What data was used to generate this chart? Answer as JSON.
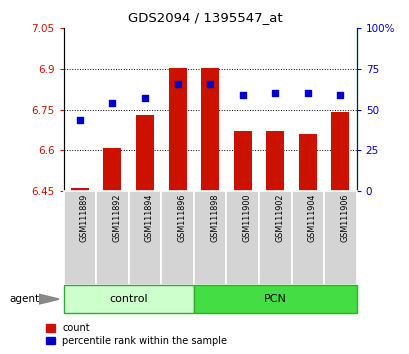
{
  "title": "GDS2094 / 1395547_at",
  "categories": [
    "GSM111889",
    "GSM111892",
    "GSM111894",
    "GSM111896",
    "GSM111898",
    "GSM111900",
    "GSM111902",
    "GSM111904",
    "GSM111906"
  ],
  "bar_values": [
    6.46,
    6.61,
    6.73,
    6.905,
    6.905,
    6.67,
    6.67,
    6.66,
    6.74
  ],
  "dot_values": [
    44,
    54,
    57,
    66,
    66,
    59,
    60,
    60,
    59
  ],
  "bar_color": "#cc1100",
  "dot_color": "#0000cc",
  "bar_bottom": 6.45,
  "ylim_left": [
    6.45,
    7.05
  ],
  "ylim_right": [
    0,
    100
  ],
  "yticks_left": [
    6.45,
    6.6,
    6.75,
    6.9,
    7.05
  ],
  "yticks_right": [
    0,
    25,
    50,
    75,
    100
  ],
  "ytick_labels_left": [
    "6.45",
    "6.6",
    "6.75",
    "6.9",
    "7.05"
  ],
  "ytick_labels_right": [
    "0",
    "25",
    "50",
    "75",
    "100%"
  ],
  "hlines": [
    6.6,
    6.75,
    6.9
  ],
  "group_labels": [
    "control",
    "PCN"
  ],
  "group_ranges": [
    [
      0,
      3
    ],
    [
      4,
      8
    ]
  ],
  "group_color_light": "#ccffcc",
  "group_color_dark": "#44dd44",
  "group_border_color": "#33aa33",
  "agent_label": "agent",
  "legend_items": [
    "count",
    "percentile rank within the sample"
  ],
  "legend_colors": [
    "#cc1100",
    "#0000cc"
  ],
  "bg_color": "#ffffff",
  "bar_width": 0.55
}
